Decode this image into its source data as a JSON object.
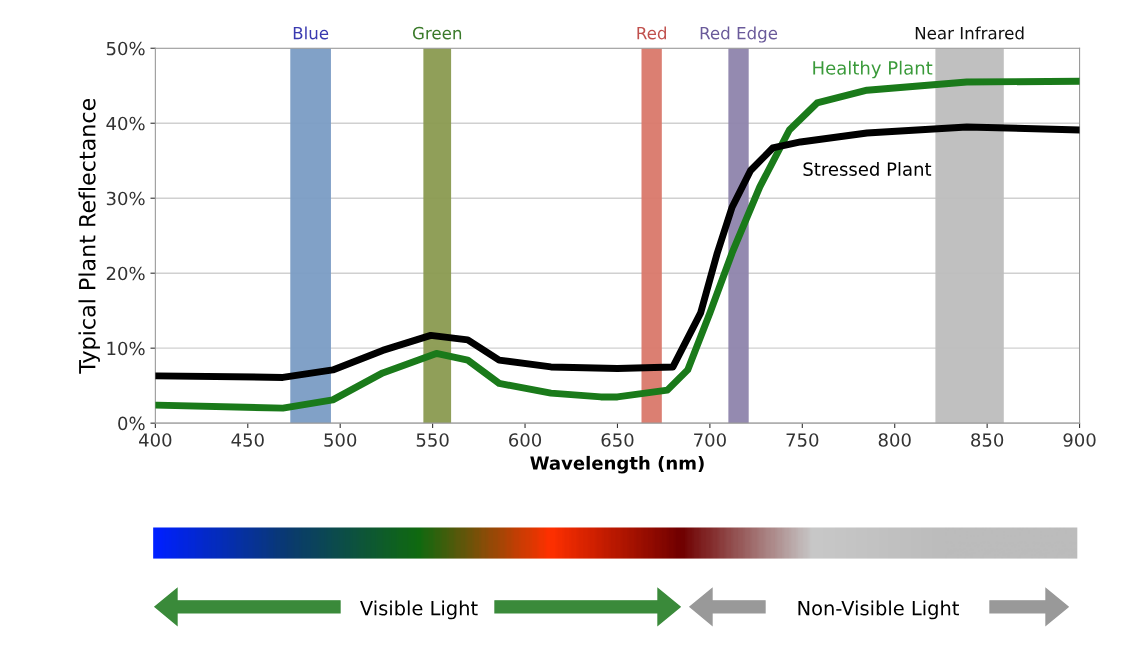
{
  "chart_data": {
    "type": "line",
    "xlabel": "Wavelength (nm)",
    "ylabel": "Typical Plant Reflectance",
    "xlim": [
      400,
      900
    ],
    "xticks": [
      400,
      450,
      500,
      550,
      600,
      650,
      700,
      750,
      800,
      850,
      900
    ],
    "ylim": [
      0,
      50
    ],
    "yticks": [
      {
        "value": 0,
        "label": "0%"
      },
      {
        "value": 10,
        "label": "10%"
      },
      {
        "value": 20,
        "label": "20%"
      },
      {
        "value": 30,
        "label": "30%"
      },
      {
        "value": 40,
        "label": "40%"
      },
      {
        "value": 50,
        "label": "50%"
      }
    ],
    "grid": "y",
    "legend": false,
    "marker": "none",
    "line_style": "solid",
    "series": [
      {
        "name": "Healthy Plant",
        "color": "#1a7a1a",
        "x": [
          401,
          469,
          496,
          523,
          552,
          569,
          586,
          614,
          641,
          650,
          677,
          688,
          700,
          712,
          727,
          743,
          758,
          785,
          839,
          900
        ],
        "values": [
          2.4,
          2.0,
          3.1,
          6.7,
          9.3,
          8.4,
          5.3,
          4.0,
          3.5,
          3.5,
          4.4,
          7.1,
          14.7,
          22.7,
          31.5,
          39.1,
          42.7,
          44.4,
          45.5,
          45.6
        ]
      },
      {
        "name": "Stressed Plant",
        "color": "#000000",
        "x": [
          401,
          469,
          496,
          523,
          549,
          569,
          586,
          614,
          650,
          680,
          695,
          704,
          712,
          722,
          734,
          749,
          785,
          839,
          900
        ],
        "values": [
          6.3,
          6.1,
          7.1,
          9.7,
          11.7,
          11.1,
          8.4,
          7.5,
          7.3,
          7.5,
          14.7,
          22.7,
          28.8,
          33.7,
          36.7,
          37.5,
          38.7,
          39.5,
          39.1
        ]
      }
    ],
    "bands": [
      {
        "axis": "x",
        "from": 473,
        "to": 495,
        "label": "Blue",
        "color": "#7a9cc4"
      },
      {
        "axis": "x",
        "from": 545,
        "to": 560,
        "label": "Green",
        "color": "#8a9a50"
      },
      {
        "axis": "x",
        "from": 663,
        "to": 674,
        "label": "Red",
        "color": "#d9786a"
      },
      {
        "axis": "x",
        "from": 710,
        "to": 721,
        "label": "Red Edge",
        "color": "#8e84ac"
      },
      {
        "axis": "x",
        "from": 822,
        "to": 859,
        "label": "Near Infrared",
        "color": "#bdbdbd"
      }
    ],
    "annotations": [
      "Visible Light",
      "Non-Visible Light"
    ]
  }
}
